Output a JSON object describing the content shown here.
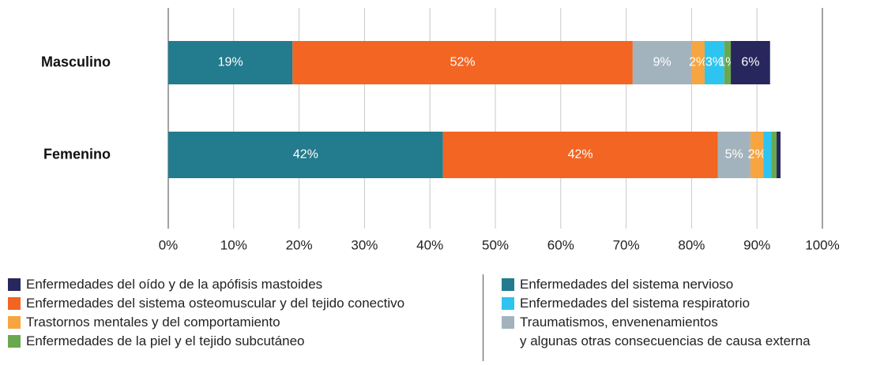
{
  "chart_data": {
    "type": "stacked-bar-horizontal",
    "categories": [
      "Masculino",
      "Femenino"
    ],
    "series": [
      {
        "name": "Enfermedades del sistema nervioso",
        "color": "#237b8e",
        "values": [
          19,
          42
        ],
        "value_labels": [
          "19%",
          "42%"
        ]
      },
      {
        "name": "Enfermedades del sistema osteomuscular y del tejido conectivo",
        "color": "#f26522",
        "values": [
          52,
          42
        ],
        "value_labels": [
          "52%",
          "42%"
        ]
      },
      {
        "name": "Traumatismos, envenenamientos\ny algunas otras consecuencias de causa externa",
        "color": "#a3b3bd",
        "values": [
          9,
          5
        ],
        "value_labels": [
          "9%",
          "5%"
        ]
      },
      {
        "name": "Trastornos mentales y del comportamiento",
        "color": "#f7a541",
        "values": [
          2,
          2
        ],
        "value_labels": [
          "2%",
          "2%"
        ]
      },
      {
        "name": "Enfermedades del sistema respiratorio",
        "color": "#2ec4f0",
        "values": [
          3,
          1.2
        ],
        "value_labels": [
          "3%",
          null
        ]
      },
      {
        "name": "Enfermedades de la piel y el tejido subcutáneo",
        "color": "#6aa84f",
        "values": [
          1,
          0.8
        ],
        "value_labels": [
          "1%",
          null
        ]
      },
      {
        "name": "Enfermedades del oído y de la apófisis mastoides",
        "color": "#27275e",
        "values": [
          6,
          0.6
        ],
        "value_labels": [
          "6%",
          null
        ]
      }
    ],
    "xlim": [
      0,
      100
    ],
    "xticks": [
      {
        "value": 0,
        "label": "0%"
      },
      {
        "value": 10,
        "label": "10%"
      },
      {
        "value": 20,
        "label": "20%"
      },
      {
        "value": 30,
        "label": "30%"
      },
      {
        "value": 40,
        "label": "40%"
      },
      {
        "value": 50,
        "label": "50%"
      },
      {
        "value": 60,
        "label": "60%"
      },
      {
        "value": 70,
        "label": "70%"
      },
      {
        "value": 80,
        "label": "80%"
      },
      {
        "value": 90,
        "label": "90%"
      },
      {
        "value": 100,
        "label": "100%"
      }
    ],
    "grid": true
  }
}
